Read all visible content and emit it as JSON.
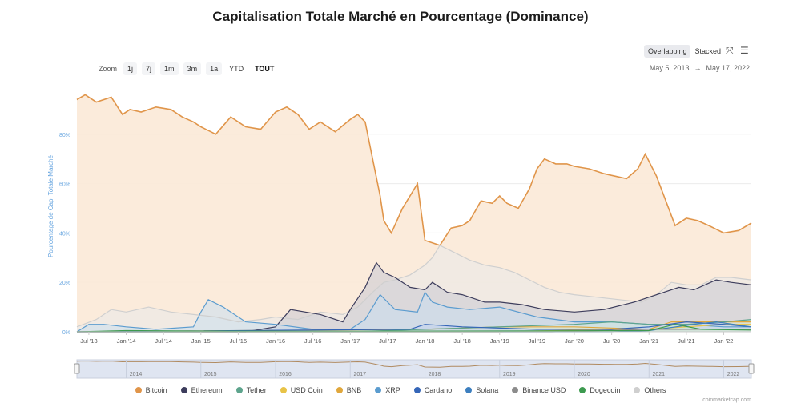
{
  "header": {
    "title": "Capitalisation Totale Marché en Pourcentage (Dominance)"
  },
  "toolbar": {
    "zoom_label": "Zoom",
    "zoom_buttons": [
      "1j",
      "7j",
      "1m",
      "3m",
      "1a",
      "YTD",
      "TOUT"
    ],
    "zoom_active": "TOUT",
    "modes": [
      "Overlapping",
      "Stacked"
    ],
    "mode_active": "Overlapping",
    "icons": [
      "fullscreen-icon",
      "menu-icon"
    ]
  },
  "range": {
    "from": "May 5, 2013",
    "arrow": "→",
    "to": "May 17, 2022"
  },
  "credit": "coinmarketcap.com",
  "navigator": {
    "labels": [
      "2014",
      "2015",
      "2016",
      "2017",
      "2018",
      "2019",
      "2020",
      "2021",
      "2022"
    ]
  },
  "chart_data": {
    "type": "area",
    "title": "Capitalisation Totale Marché en Pourcentage (Dominance)",
    "ylabel": "Pourcentage de Cap. Totale Marché",
    "ylim": [
      0,
      100
    ],
    "yticks": [
      "0%",
      "20%",
      "40%",
      "60%",
      "80%"
    ],
    "x_range": [
      "2013-05-05",
      "2022-05-17"
    ],
    "xticks": [
      "Jul '13",
      "Jan '14",
      "Jul '14",
      "Jan '15",
      "Jul '15",
      "Jan '16",
      "Jul '16",
      "Jan '17",
      "Jul '17",
      "Jan '18",
      "Jul '18",
      "Jan '19",
      "Jul '19",
      "Jan '20",
      "Jul '20",
      "Jan '21",
      "Jul '21",
      "Jan '22"
    ],
    "legend_position": "bottom",
    "series": [
      {
        "name": "Bitcoin",
        "color": "#e0954a",
        "fill": "#fbe9d7",
        "x": [
          2013.34,
          2013.45,
          2013.6,
          2013.8,
          2013.95,
          2014.05,
          2014.2,
          2014.4,
          2014.6,
          2014.75,
          2014.9,
          2015.0,
          2015.2,
          2015.4,
          2015.6,
          2015.8,
          2016.0,
          2016.15,
          2016.3,
          2016.45,
          2016.6,
          2016.8,
          2017.0,
          2017.1,
          2017.2,
          2017.3,
          2017.4,
          2017.45,
          2017.55,
          2017.7,
          2017.8,
          2017.9,
          2018.0,
          2018.1,
          2018.2,
          2018.35,
          2018.5,
          2018.6,
          2018.75,
          2018.9,
          2019.0,
          2019.1,
          2019.25,
          2019.4,
          2019.5,
          2019.6,
          2019.75,
          2019.9,
          2020.0,
          2020.2,
          2020.4,
          2020.55,
          2020.7,
          2020.85,
          2020.95,
          2021.1,
          2021.2,
          2021.35,
          2021.5,
          2021.65,
          2021.8,
          2022.0,
          2022.2,
          2022.37
        ],
        "values": [
          94,
          96,
          93,
          95,
          88,
          90,
          89,
          91,
          90,
          87,
          85,
          83,
          80,
          87,
          83,
          82,
          89,
          91,
          88,
          82,
          85,
          81,
          86,
          88,
          85,
          70,
          55,
          45,
          40,
          50,
          55,
          60,
          37,
          36,
          35,
          42,
          43,
          45,
          53,
          52,
          55,
          52,
          50,
          58,
          66,
          70,
          68,
          68,
          67,
          66,
          64,
          63,
          62,
          66,
          72,
          63,
          55,
          43,
          46,
          45,
          43,
          40,
          41,
          44
        ]
      },
      {
        "name": "Ethereum",
        "color": "#3d3d5c",
        "fill": "#c9c8d3",
        "x": [
          2013.34,
          2015.6,
          2016.0,
          2016.2,
          2016.4,
          2016.6,
          2016.9,
          2017.0,
          2017.2,
          2017.35,
          2017.45,
          2017.6,
          2017.8,
          2018.0,
          2018.1,
          2018.3,
          2018.5,
          2018.8,
          2019.0,
          2019.3,
          2019.6,
          2020.0,
          2020.4,
          2020.8,
          2021.0,
          2021.2,
          2021.4,
          2021.6,
          2021.9,
          2022.1,
          2022.37
        ],
        "values": [
          0,
          0,
          2,
          9,
          8,
          7,
          4,
          9,
          18,
          28,
          24,
          22,
          18,
          17,
          20,
          16,
          15,
          12,
          12,
          11,
          9,
          8,
          9,
          12,
          14,
          16,
          18,
          17,
          21,
          20,
          19
        ]
      },
      {
        "name": "Tether",
        "color": "#5ea48d",
        "fill": "#cde5dc",
        "x": [
          2013.34,
          2017.0,
          2018.0,
          2019.0,
          2020.0,
          2020.5,
          2021.0,
          2021.5,
          2022.0,
          2022.37
        ],
        "values": [
          0,
          0,
          1,
          2,
          3,
          4,
          3,
          3,
          4,
          5
        ]
      },
      {
        "name": "USD Coin",
        "color": "#e8c347",
        "fill": "#f7ebc0",
        "x": [
          2013.34,
          2019.0,
          2020.5,
          2021.0,
          2021.5,
          2022.0,
          2022.37
        ],
        "values": [
          0,
          0,
          1,
          1,
          2,
          3,
          3
        ]
      },
      {
        "name": "BNB",
        "color": "#e0a73c",
        "fill": "#f6e2bc",
        "x": [
          2013.34,
          2018.0,
          2019.0,
          2020.0,
          2021.0,
          2021.3,
          2021.7,
          2022.0,
          2022.37
        ],
        "values": [
          0,
          1,
          2,
          2,
          1,
          4,
          4,
          4,
          4
        ]
      },
      {
        "name": "XRP",
        "color": "#5b9ccf",
        "fill": "#c8dff0",
        "x": [
          2013.34,
          2013.5,
          2013.7,
          2014.0,
          2014.4,
          2014.9,
          2015.0,
          2015.1,
          2015.3,
          2015.6,
          2016.0,
          2016.5,
          2017.0,
          2017.2,
          2017.4,
          2017.6,
          2017.9,
          2018.0,
          2018.1,
          2018.3,
          2018.6,
          2019.0,
          2019.5,
          2020.0,
          2020.5,
          2021.0,
          2021.5,
          2022.0,
          2022.37
        ],
        "values": [
          0,
          3,
          3,
          2,
          1,
          2,
          8,
          13,
          10,
          4,
          3,
          1,
          1,
          5,
          15,
          9,
          8,
          16,
          12,
          10,
          9,
          10,
          6,
          4,
          4,
          3,
          3,
          2,
          2
        ]
      },
      {
        "name": "Cardano",
        "color": "#3566b8",
        "fill": "#c3d1ec",
        "x": [
          2013.34,
          2017.8,
          2018.0,
          2018.5,
          2019.5,
          2020.5,
          2021.0,
          2021.5,
          2022.0,
          2022.37
        ],
        "values": [
          0,
          1,
          3,
          2,
          1,
          1,
          2,
          4,
          3,
          2
        ]
      },
      {
        "name": "Solana",
        "color": "#3d7fbf",
        "fill": "#c6d8ec",
        "x": [
          2013.34,
          2020.5,
          2021.0,
          2021.6,
          2021.9,
          2022.37
        ],
        "values": [
          0,
          0,
          0.5,
          3,
          4,
          2
        ]
      },
      {
        "name": "Binance USD",
        "color": "#8c8c8c",
        "fill": "#dddddd",
        "x": [
          2013.34,
          2019.7,
          2021.0,
          2022.0,
          2022.37
        ],
        "values": [
          0,
          0,
          1,
          1,
          1
        ]
      },
      {
        "name": "Dogecoin",
        "color": "#3d9a4f",
        "fill": "#cde7d2",
        "x": [
          2013.34,
          2014.0,
          2015.0,
          2017.0,
          2021.0,
          2021.35,
          2021.7,
          2022.37
        ],
        "values": [
          0,
          0.5,
          0.3,
          0.2,
          0.5,
          3,
          1,
          0.7
        ]
      },
      {
        "name": "Others",
        "color": "#cfcfcf",
        "fill": "#e9e9e9",
        "x": [
          2013.34,
          2013.6,
          2013.8,
          2014.0,
          2014.3,
          2014.6,
          2014.9,
          2015.2,
          2015.5,
          2015.8,
          2016.0,
          2016.3,
          2016.6,
          2016.9,
          2017.1,
          2017.3,
          2017.45,
          2017.6,
          2017.8,
          2018.0,
          2018.1,
          2018.2,
          2018.4,
          2018.6,
          2018.8,
          2019.0,
          2019.2,
          2019.4,
          2019.6,
          2019.8,
          2020.0,
          2020.3,
          2020.6,
          2020.9,
          2021.1,
          2021.3,
          2021.5,
          2021.7,
          2021.9,
          2022.1,
          2022.37
        ],
        "values": [
          2,
          5,
          9,
          8,
          10,
          8,
          7,
          6,
          4,
          5,
          6,
          5,
          8,
          7,
          10,
          16,
          20,
          21,
          23,
          27,
          30,
          35,
          32,
          29,
          27,
          26,
          24,
          21,
          18,
          16,
          15,
          14,
          13,
          12,
          15,
          20,
          19,
          19,
          22,
          22,
          21
        ]
      }
    ]
  }
}
